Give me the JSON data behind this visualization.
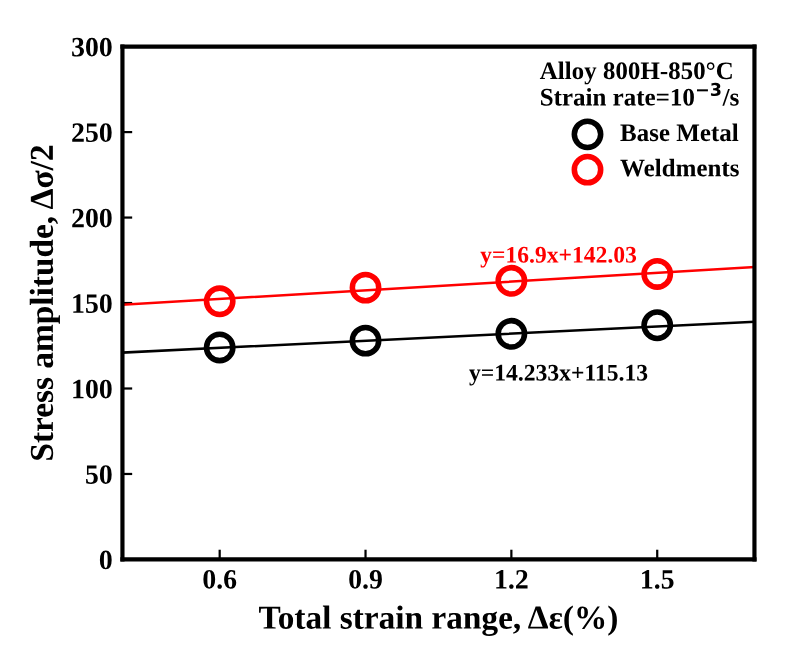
{
  "chart_data": {
    "type": "scatter",
    "xlabel": "Total strain range, Δε(%)",
    "ylabel": "Stress amplitude, Δσ/2",
    "legend_title": "Alloy 800H-850°C\nStrain rate=10$^{−3}$/s",
    "series": [
      {
        "name": "Base Metal",
        "color": "#000000",
        "marker": "circle",
        "x": [
          0.6,
          0.9,
          1.2,
          1.5
        ],
        "values": [
          124,
          128,
          132,
          137
        ]
      },
      {
        "name": "Weldments",
        "color": "#ff0000",
        "marker": "circle",
        "x": [
          0.6,
          0.9,
          1.2,
          1.5
        ],
        "values": [
          151,
          159,
          163,
          167
        ]
      },
      {
        "type": "line",
        "color": "#000000",
        "x": [
          0.4,
          1.7
        ],
        "values": [
          121,
          139
        ]
      },
      {
        "type": "line",
        "color": "#ff0000",
        "x": [
          0.4,
          1.7
        ],
        "values": [
          149,
          171
        ]
      }
    ],
    "annotations": [
      "y=14.233x+115.13",
      "y=16.9x+142.03"
    ],
    "xlim": [
      0.4,
      1.7
    ],
    "ylim": [
      0,
      300
    ],
    "xticks": [
      0.6,
      0.9,
      1.2,
      1.5
    ],
    "yticks": [
      0,
      50,
      100,
      150,
      200,
      250,
      300
    ],
    "legend": "top right",
    "grid": false
  }
}
